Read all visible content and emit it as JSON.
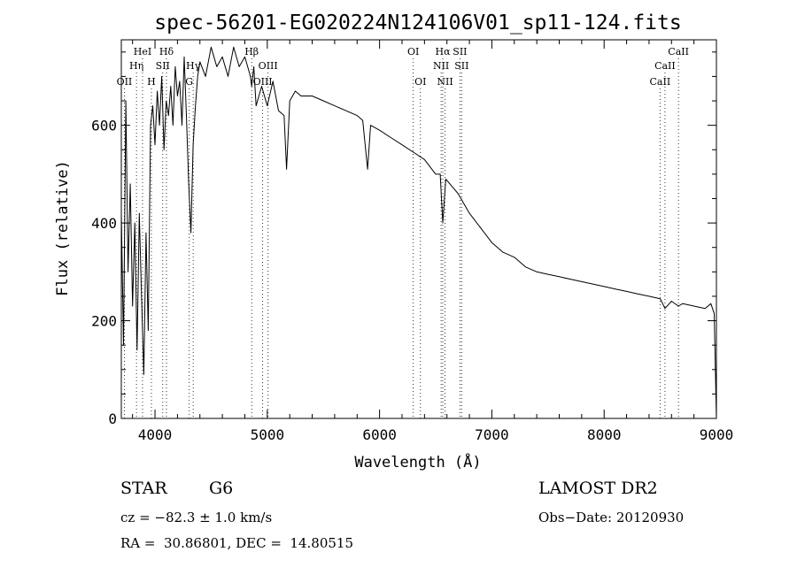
{
  "chart_data": {
    "type": "line",
    "title": "spec-56201-EG020224N124106V01_sp11-124.fits",
    "xlabel": "Wavelength (Å)",
    "ylabel": "Flux (relative)",
    "xlim": [
      3700,
      9000
    ],
    "ylim": [
      0,
      775
    ],
    "x_ticks": [
      4000,
      5000,
      6000,
      7000,
      8000,
      9000
    ],
    "y_ticks": [
      0,
      200,
      400,
      600
    ],
    "grid": false,
    "series": [
      {
        "x": [
          3700,
          3720,
          3740,
          3760,
          3780,
          3800,
          3820,
          3840,
          3860,
          3880,
          3900,
          3920,
          3940,
          3960,
          3980,
          4000,
          4020,
          4040,
          4060,
          4080,
          4100,
          4120,
          4140,
          4160,
          4180,
          4200,
          4220,
          4240,
          4260,
          4280,
          4300,
          4320,
          4340,
          4360,
          4380,
          4400,
          4450,
          4500,
          4550,
          4600,
          4650,
          4700,
          4750,
          4800,
          4850,
          4861,
          4880,
          4900,
          4950,
          5000,
          5050,
          5100,
          5150,
          5172,
          5200,
          5250,
          5300,
          5400,
          5500,
          5600,
          5700,
          5800,
          5850,
          5893,
          5920,
          6000,
          6100,
          6200,
          6300,
          6400,
          6500,
          6540,
          6563,
          6590,
          6700,
          6800,
          6900,
          7000,
          7100,
          7200,
          7300,
          7400,
          7500,
          7600,
          7700,
          7800,
          7900,
          8000,
          8100,
          8200,
          8300,
          8400,
          8500,
          8542,
          8600,
          8662,
          8700,
          8800,
          8900,
          8950,
          8980,
          9000
        ],
        "y": [
          420,
          150,
          650,
          300,
          480,
          230,
          400,
          140,
          420,
          250,
          90,
          380,
          180,
          600,
          640,
          560,
          670,
          600,
          700,
          550,
          650,
          620,
          680,
          600,
          720,
          660,
          690,
          600,
          740,
          620,
          480,
          380,
          560,
          640,
          700,
          730,
          700,
          760,
          720,
          740,
          700,
          760,
          720,
          740,
          700,
          680,
          720,
          640,
          680,
          640,
          690,
          630,
          620,
          510,
          650,
          670,
          660,
          660,
          650,
          640,
          630,
          620,
          610,
          510,
          600,
          590,
          575,
          560,
          545,
          530,
          500,
          500,
          400,
          490,
          460,
          420,
          390,
          360,
          340,
          330,
          310,
          300,
          295,
          290,
          285,
          280,
          275,
          270,
          265,
          260,
          255,
          250,
          245,
          225,
          240,
          230,
          235,
          230,
          225,
          235,
          215,
          0
        ]
      }
    ],
    "line_labels": [
      {
        "label": "OII",
        "x": 3727,
        "row": 3
      },
      {
        "label": "Hη",
        "x": 3835,
        "row": 2
      },
      {
        "label": "HeI",
        "x": 3889,
        "row": 1
      },
      {
        "label": "H",
        "x": 3968,
        "row": 3
      },
      {
        "label": "SII",
        "x": 4069,
        "row": 2
      },
      {
        "label": "Hδ",
        "x": 4102,
        "row": 1
      },
      {
        "label": "Hγ",
        "x": 4340,
        "row": 2
      },
      {
        "label": "G",
        "x": 4305,
        "row": 3
      },
      {
        "label": "Hβ",
        "x": 4861,
        "row": 1
      },
      {
        "label": "OIII",
        "x": 4959,
        "row": 3
      },
      {
        "label": "OIII",
        "x": 5007,
        "row": 2
      },
      {
        "label": "OI",
        "x": 6300,
        "row": 1
      },
      {
        "label": "OI",
        "x": 6364,
        "row": 3
      },
      {
        "label": "Hα",
        "x": 6563,
        "row": 1
      },
      {
        "label": "NII",
        "x": 6548,
        "row": 2
      },
      {
        "label": "NII",
        "x": 6583,
        "row": 3
      },
      {
        "label": "SII",
        "x": 6716,
        "row": 1
      },
      {
        "label": "SII",
        "x": 6731,
        "row": 2
      },
      {
        "label": "CaII",
        "x": 8662,
        "row": 1
      },
      {
        "label": "CaII",
        "x": 8542,
        "row": 2
      },
      {
        "label": "CaII",
        "x": 8498,
        "row": 3
      }
    ]
  },
  "info": {
    "object_type": "STAR",
    "subclass": "G6",
    "survey": "LAMOST DR2",
    "cz": "cz = −82.3 ± 1.0 km/s",
    "obs_date": "Obs−Date: 20120930",
    "coords": "RA =  30.86801, DEC =  14.80515"
  }
}
